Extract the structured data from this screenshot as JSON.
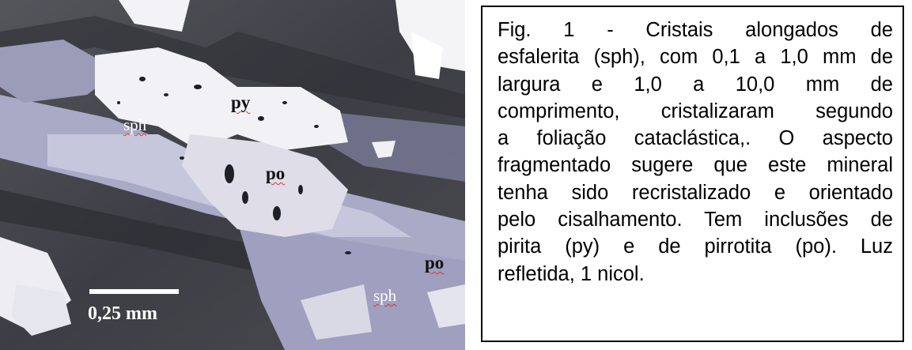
{
  "micrograph": {
    "labels": {
      "py": "py",
      "sph_upper": "sph",
      "po_center": "po",
      "po_right": "po",
      "sph_lower": "sph"
    },
    "scale": "0,25 mm"
  },
  "caption": {
    "lines": [
      "Fig. 1 - Cristais alongados de",
      "esfalerita (sph), com 0,1 a 1,0 mm de",
      "largura e 1,0 a 10,0 mm de",
      "comprimento, cristalizaram segundo",
      "a foliação cataclástica,. O aspecto",
      "fragmentado sugere que este mineral",
      "tenha sido recristalizado e orientado",
      "pelo cisalhamento. Tem inclusões de",
      "pirita (py) e de pirrotita (po). Luz",
      "refletida, 1 nicol."
    ]
  }
}
